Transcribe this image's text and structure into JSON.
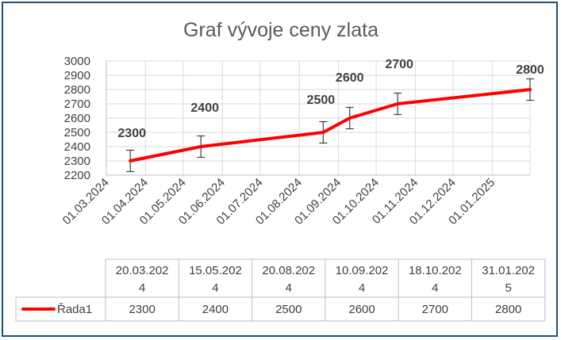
{
  "colors": {
    "line": "#ff0000",
    "grid": "#d9d9d9",
    "border": "#1f4e79",
    "text": "#404040",
    "error_bar": "#404040"
  },
  "chart_data": {
    "type": "line",
    "title": "Graf vývoje ceny zlata",
    "xlabel": "",
    "ylabel": "",
    "ylim": [
      2200,
      3000
    ],
    "y_ticks": [
      "2200",
      "2300",
      "2400",
      "2500",
      "2600",
      "2700",
      "2800",
      "2900",
      "3000"
    ],
    "x_date_range": [
      "2024-03-01",
      "2025-01-31"
    ],
    "x_tick_labels": [
      "01.03.2024",
      "01.04.2024",
      "01.05.2024",
      "01.06.2024",
      "01.07.2024",
      "01.08.2024",
      "01.09.2024",
      "01.10.2024",
      "01.11.2024",
      "01.12.2024",
      "01.01.2025"
    ],
    "x_tick_dates": [
      "2024-03-01",
      "2024-04-01",
      "2024-05-01",
      "2024-06-01",
      "2024-07-01",
      "2024-08-01",
      "2024-09-01",
      "2024-10-01",
      "2024-11-01",
      "2024-12-01",
      "2025-01-01"
    ],
    "grid": true,
    "error_bar_amount": 75,
    "series": [
      {
        "name": "Řada1",
        "x": [
          "2024-03-20",
          "2024-05-15",
          "2024-08-20",
          "2024-09-10",
          "2024-10-18",
          "2025-01-31"
        ],
        "values": [
          2300,
          2400,
          2500,
          2600,
          2700,
          2800
        ],
        "data_labels": [
          "2300",
          "2400",
          "2500",
          "2600",
          "2700",
          "2800"
        ]
      }
    ],
    "table": {
      "header_lines": [
        [
          "20.03.202",
          "4"
        ],
        [
          "15.05.202",
          "4"
        ],
        [
          "20.08.202",
          "4"
        ],
        [
          "10.09.202",
          "4"
        ],
        [
          "18.10.202",
          "4"
        ],
        [
          "31.01.202",
          "5"
        ]
      ],
      "row_label": "Řada1",
      "row_values": [
        "2300",
        "2400",
        "2500",
        "2600",
        "2700",
        "2800"
      ]
    }
  }
}
